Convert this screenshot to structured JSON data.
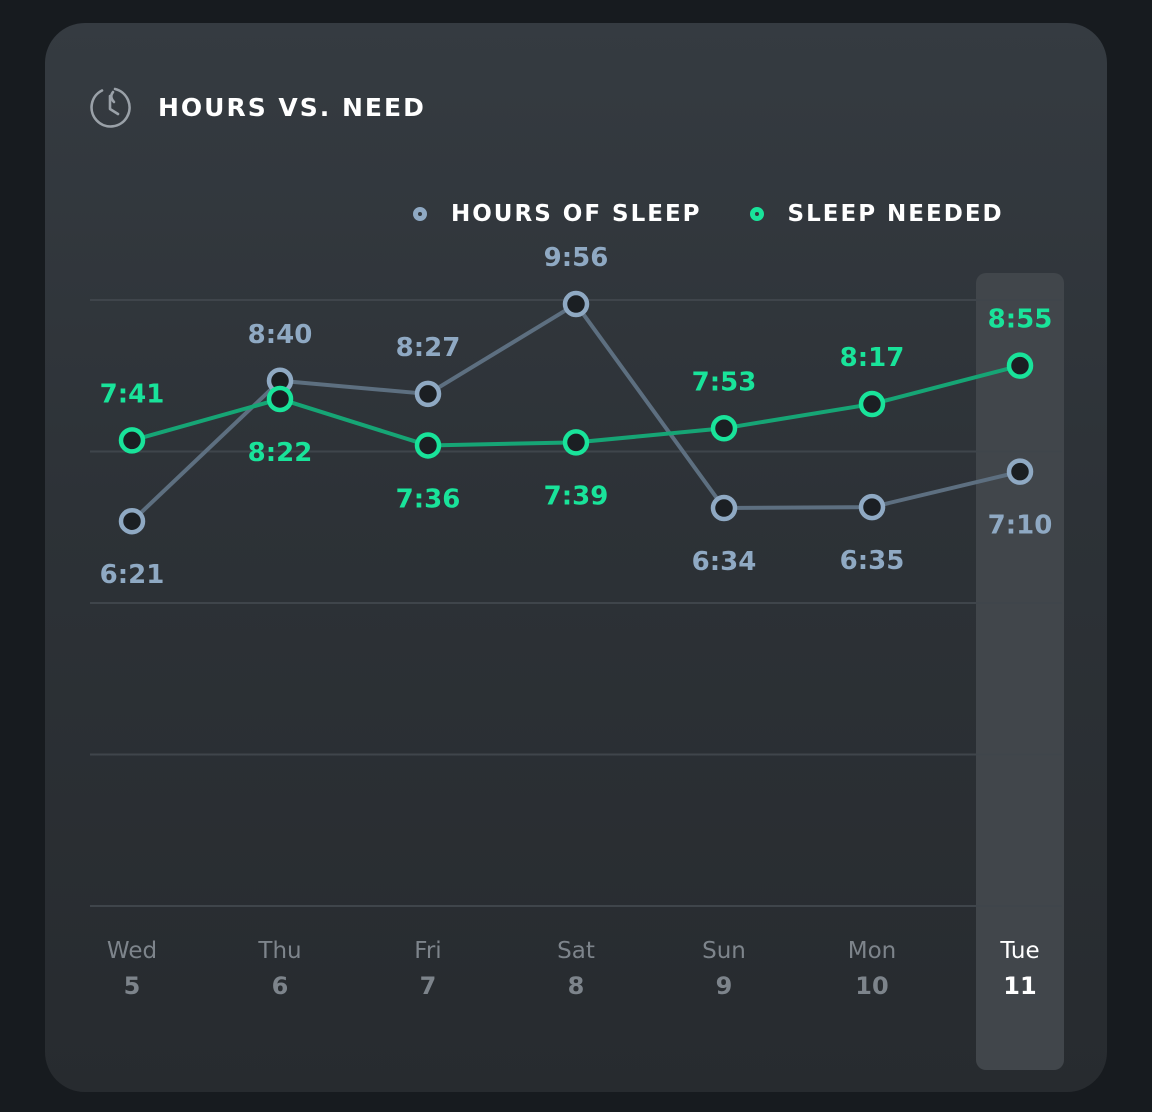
{
  "card": {
    "title": "HOURS VS. NEED",
    "icon": "sleep-clock-icon"
  },
  "legend": {
    "hours_label": "HOURS OF SLEEP",
    "needed_label": "SLEEP NEEDED"
  },
  "colors": {
    "hours": "#8fa9c3",
    "hours_line": "#5d6f80",
    "needed": "#19e39a",
    "needed_line": "#16a575",
    "highlight": "#41464b",
    "gridline": "#3f454b",
    "day_label": "#7d848b",
    "day_label_active": "#ffffff"
  },
  "chart_data": {
    "type": "line",
    "categories": [
      {
        "day": "Wed",
        "date": "5"
      },
      {
        "day": "Thu",
        "date": "6"
      },
      {
        "day": "Fri",
        "date": "7"
      },
      {
        "day": "Sat",
        "date": "8"
      },
      {
        "day": "Sun",
        "date": "9"
      },
      {
        "day": "Mon",
        "date": "10"
      },
      {
        "day": "Tue",
        "date": "11"
      }
    ],
    "highlighted_index": 6,
    "series": [
      {
        "name": "HOURS OF SLEEP",
        "labels": [
          "6:21",
          "8:40",
          "8:27",
          "9:56",
          "6:34",
          "6:35",
          "7:10"
        ],
        "values": [
          6.35,
          8.667,
          8.45,
          9.933,
          6.567,
          6.583,
          7.167
        ],
        "label_position": [
          "below",
          "above",
          "above",
          "above",
          "below",
          "below",
          "below"
        ]
      },
      {
        "name": "SLEEP NEEDED",
        "labels": [
          "7:41",
          "8:22",
          "7:36",
          "7:39",
          "7:53",
          "8:17",
          "8:55"
        ],
        "values": [
          7.683,
          8.367,
          7.6,
          7.65,
          7.883,
          8.283,
          8.917
        ],
        "label_position": [
          "above",
          "below",
          "below",
          "below",
          "above",
          "above",
          "above"
        ]
      }
    ],
    "ylim": [
      0,
      10
    ],
    "y_gridlines": [
      0,
      2.5,
      5,
      7.5,
      10
    ],
    "grid": true,
    "legend_position": "top-right"
  }
}
